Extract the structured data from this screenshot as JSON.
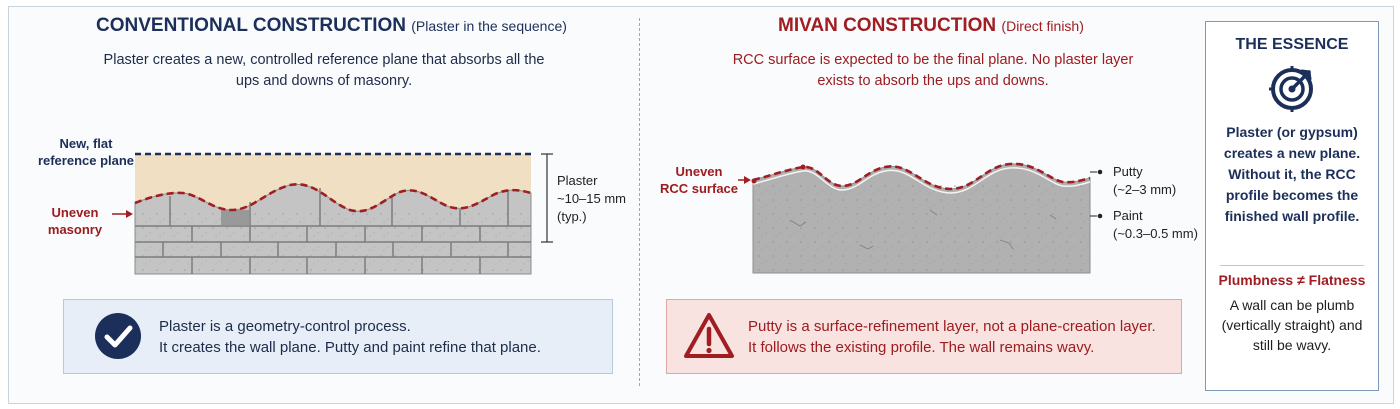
{
  "left": {
    "title": "CONVENTIONAL CONSTRUCTION",
    "subtitle": "(Plaster in the sequence)",
    "lead": "Plaster creates a new, controlled reference plane that absorbs all the ups and downs of masonry.",
    "label_reference_line1": "New, flat",
    "label_reference_line2": "reference plane",
    "label_masonry_line1": "Uneven",
    "label_masonry_line2": "masonry",
    "plaster_label": "Plaster",
    "plaster_thickness": "~10–15 mm",
    "plaster_typ": "(typ.)",
    "box_line1": "Plaster is a geometry-control process.",
    "box_line2": "It creates the wall plane. Putty and paint refine that plane."
  },
  "right": {
    "title": "MIVAN CONSTRUCTION",
    "subtitle": "(Direct finish)",
    "lead": "RCC surface is expected to be the final plane. No plaster layer exists to absorb the ups and downs.",
    "label_rcc_line1": "Uneven",
    "label_rcc_line2": "RCC surface",
    "putty_label": "Putty",
    "putty_thickness": "(~2–3 mm)",
    "paint_label": "Paint",
    "paint_thickness": "(~0.3–0.5 mm)",
    "box_line1": "Putty is a surface-refinement layer, not a plane-creation layer.",
    "box_line2": "It follows the existing profile. The wall remains wavy."
  },
  "essence": {
    "title": "THE ESSENCE",
    "body": "Plaster (or gypsum) creates a new plane. Without it, the RCC profile becomes the finished wall profile.",
    "subtitle": "Plumbness ≠ Flatness",
    "body2": "A wall can be plumb (vertically straight) and still be wavy."
  },
  "colors": {
    "navy": "#1c2f5a",
    "red": "#a01d22",
    "plaster": "#f1dfc4",
    "masonry": "#c2c2c2",
    "concrete": "#b1b1b1",
    "box_blue": "#e7eef7",
    "box_red": "#f8e3e1"
  },
  "icons": {
    "check": "check-circle-icon",
    "warning": "warning-triangle-icon",
    "target": "target-icon"
  }
}
